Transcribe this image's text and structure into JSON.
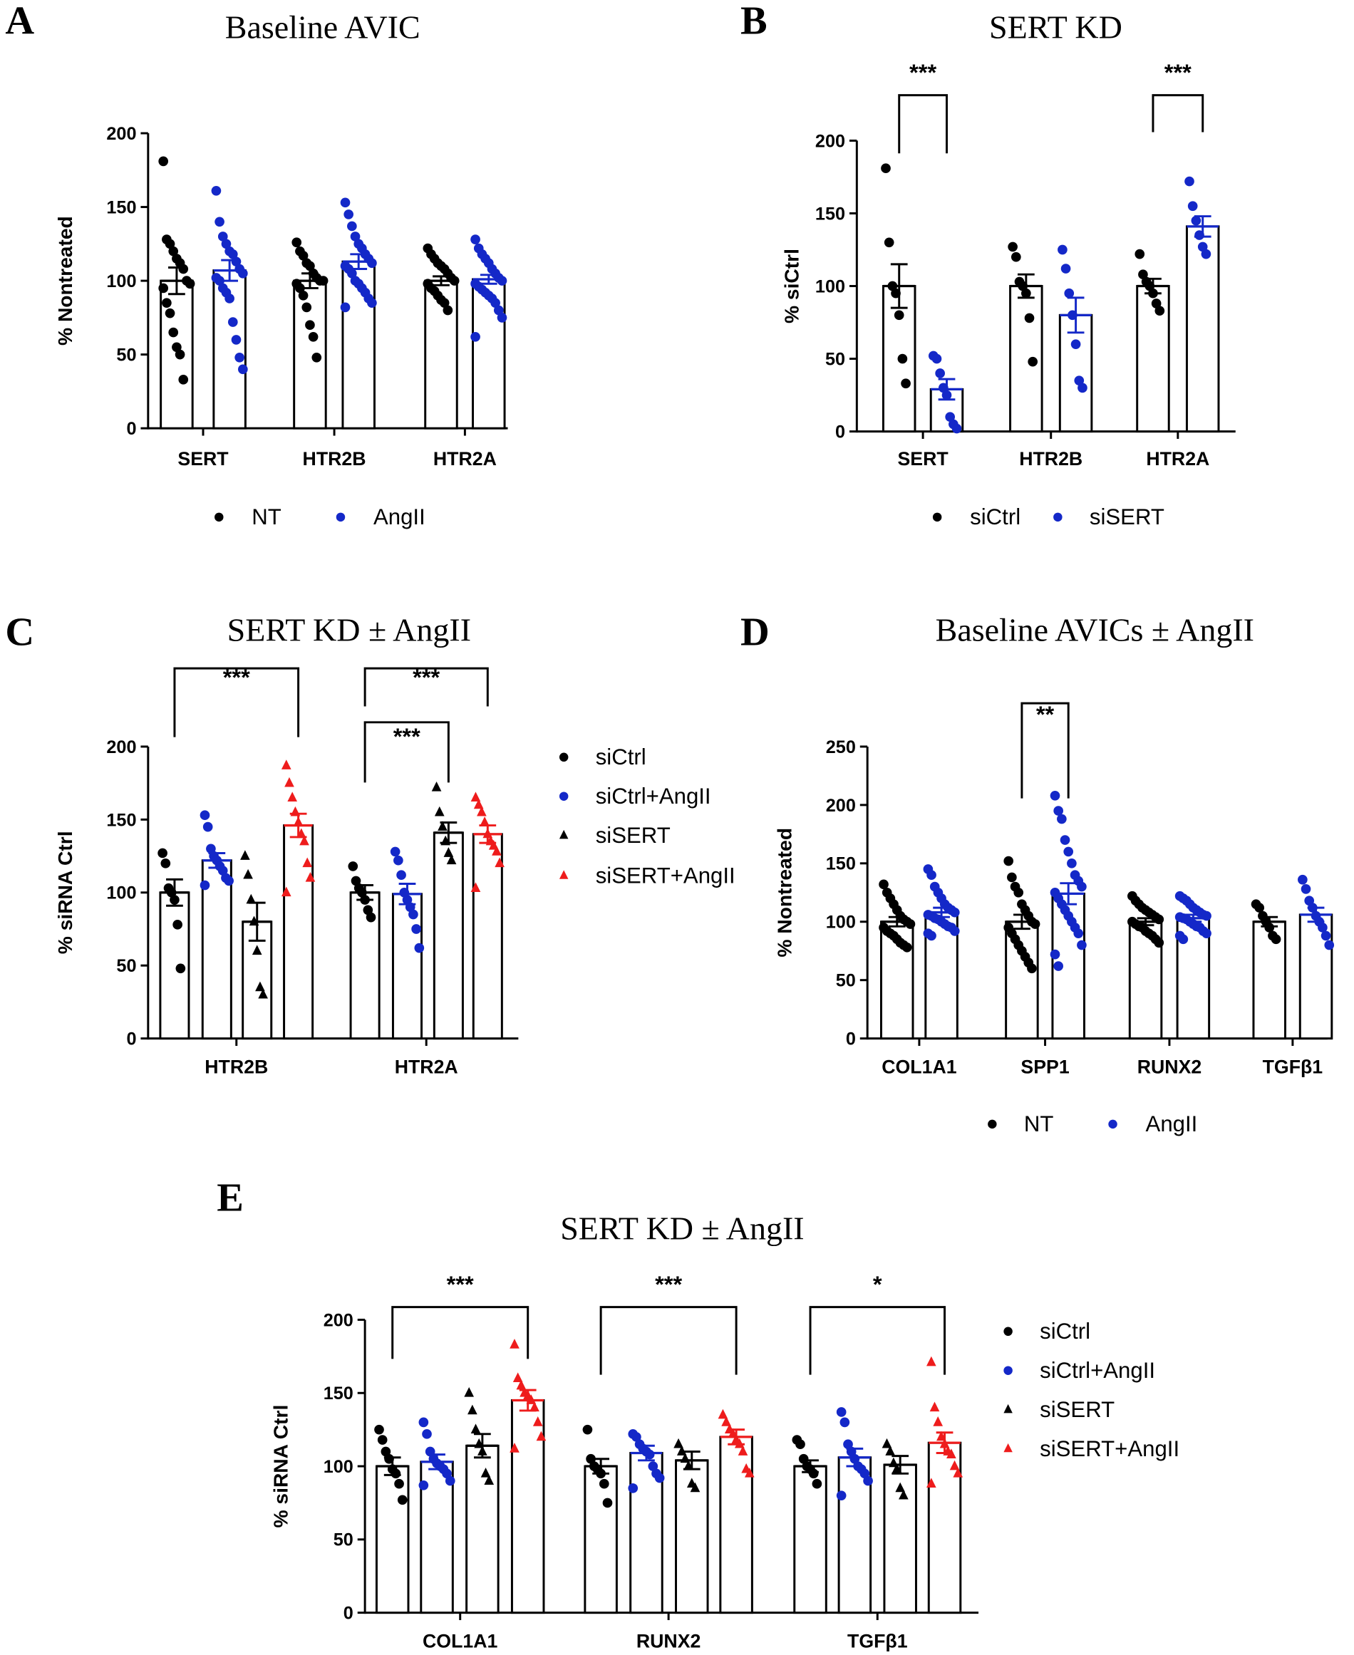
{
  "colors": {
    "black": "#000000",
    "blue": "#1428c8",
    "red": "#ee1c1c"
  },
  "chart_data": [
    {
      "id": "A",
      "letter": "A",
      "type": "bar",
      "title": "Baseline AVIC",
      "ylabel": "% Nontreated",
      "ylim": [
        0,
        200
      ],
      "yticks": [
        0,
        50,
        100,
        150,
        200
      ],
      "categories": [
        "SERT",
        "HTR2B",
        "HTR2A"
      ],
      "series": [
        {
          "name": "NT",
          "color": "black",
          "marker": "circle",
          "means": [
            100,
            100,
            100
          ],
          "sem": [
            9,
            5,
            3
          ],
          "points": [
            [
              181,
              128,
              125,
              120,
              115,
              112,
              108,
              100,
              98,
              95,
              85,
              78,
              65,
              55,
              50,
              33
            ],
            [
              126,
              120,
              117,
              112,
              110,
              105,
              102,
              100,
              100,
              98,
              95,
              90,
              82,
              70,
              62,
              48
            ],
            [
              122,
              118,
              115,
              112,
              110,
              108,
              105,
              102,
              100,
              98,
              95,
              93,
              90,
              87,
              85,
              80
            ]
          ]
        },
        {
          "name": "AngII",
          "color": "blue",
          "marker": "circle",
          "means": [
            107,
            113,
            101
          ],
          "sem": [
            7,
            5,
            3
          ],
          "points": [
            [
              161,
              140,
              130,
              125,
              120,
              118,
              113,
              108,
              105,
              102,
              100,
              95,
              92,
              88,
              72,
              60,
              48,
              40
            ],
            [
              153,
              145,
              137,
              130,
              125,
              122,
              118,
              115,
              112,
              110,
              108,
              105,
              100,
              98,
              95,
              92,
              88,
              85,
              82
            ],
            [
              128,
              122,
              118,
              115,
              112,
              108,
              105,
              102,
              100,
              98,
              96,
              94,
              92,
              90,
              88,
              85,
              80,
              75,
              62
            ]
          ]
        }
      ],
      "significance": []
    },
    {
      "id": "B",
      "letter": "B",
      "type": "bar",
      "title": "SERT KD",
      "ylabel": "% siCtrl",
      "ylim": [
        0,
        200
      ],
      "yticks": [
        0,
        50,
        100,
        150,
        200
      ],
      "categories": [
        "SERT",
        "HTR2B",
        "HTR2A"
      ],
      "series": [
        {
          "name": "siCtrl",
          "color": "black",
          "marker": "circle",
          "means": [
            100,
            100,
            100
          ],
          "sem": [
            15,
            8,
            5
          ],
          "points": [
            [
              181,
              130,
              100,
              95,
              80,
              50,
              33
            ],
            [
              127,
              120,
              103,
              100,
              95,
              78,
              48
            ],
            [
              122,
              108,
              103,
              100,
              95,
              88,
              83
            ]
          ]
        },
        {
          "name": "siSERT",
          "color": "blue",
          "marker": "circle",
          "means": [
            29,
            80,
            141
          ],
          "sem": [
            7,
            12,
            7
          ],
          "points": [
            [
              52,
              50,
              40,
              30,
              25,
              10,
              5,
              2
            ],
            [
              125,
              112,
              95,
              80,
              60,
              35,
              30
            ],
            [
              172,
              155,
              145,
              135,
              127,
              122
            ]
          ]
        }
      ],
      "significance": [
        {
          "category": 0,
          "from": 0,
          "to": 1,
          "label": "***"
        },
        {
          "category": 2,
          "from": 0,
          "to": 1,
          "label": "***"
        }
      ]
    },
    {
      "id": "C",
      "letter": "C",
      "type": "bar",
      "title": "SERT KD ± AngII",
      "ylabel": "% siRNA Ctrl",
      "ylim": [
        0,
        200
      ],
      "yticks": [
        0,
        50,
        100,
        150,
        200
      ],
      "categories": [
        "HTR2B",
        "HTR2A"
      ],
      "series": [
        {
          "name": "siCtrl",
          "color": "black",
          "marker": "circle",
          "means": [
            100,
            100
          ],
          "sem": [
            9,
            5
          ],
          "points": [
            [
              127,
              120,
              103,
              100,
              95,
              78,
              48
            ],
            [
              118,
              108,
              103,
              100,
              95,
              88,
              83
            ]
          ]
        },
        {
          "name": "siCtrl+AngII",
          "color": "blue",
          "marker": "circle",
          "means": [
            122,
            99
          ],
          "sem": [
            5,
            7
          ],
          "points": [
            [
              153,
              145,
              130,
              125,
              122,
              118,
              115,
              110,
              108,
              105
            ],
            [
              128,
              122,
              112,
              100,
              95,
              90,
              85,
              75,
              62
            ]
          ]
        },
        {
          "name": "siSERT",
          "color": "black",
          "marker": "triangle",
          "means": [
            80,
            141
          ],
          "sem": [
            13,
            7
          ],
          "points": [
            [
              125,
              112,
              95,
              80,
              60,
              35,
              30
            ],
            [
              172,
              155,
              145,
              135,
              127,
              122
            ]
          ]
        },
        {
          "name": "siSERT+AngII",
          "color": "red",
          "marker": "triangle",
          "means": [
            146,
            140
          ],
          "sem": [
            8,
            6
          ],
          "points": [
            [
              187,
              175,
              165,
              155,
              148,
              140,
              135,
              120,
              110,
              100
            ],
            [
              165,
              160,
              155,
              148,
              140,
              135,
              132,
              128,
              120,
              103
            ]
          ]
        }
      ],
      "significance": [
        {
          "category": 0,
          "from": 0,
          "to": 3,
          "label": "***"
        },
        {
          "category": 1,
          "from": 0,
          "to": 3,
          "label": "***"
        },
        {
          "category": 1,
          "from": 0,
          "to": 2,
          "label": "***"
        }
      ]
    },
    {
      "id": "D",
      "letter": "D",
      "type": "bar",
      "title": "Baseline AVICs ± AngII",
      "ylabel": "% Nontreated",
      "ylim": [
        0,
        250
      ],
      "yticks": [
        0,
        50,
        100,
        150,
        200,
        250
      ],
      "categories": [
        "COL1A1",
        "SPP1",
        "RUNX2",
        "TGFβ1"
      ],
      "series": [
        {
          "name": "NT",
          "color": "black",
          "marker": "circle",
          "means": [
            100,
            100,
            100,
            100
          ],
          "sem": [
            4,
            6,
            3,
            4
          ],
          "points": [
            [
              132,
              125,
              120,
              115,
              110,
              105,
              102,
              100,
              98,
              95,
              92,
              90,
              88,
              85,
              82,
              80,
              78
            ],
            [
              152,
              138,
              130,
              125,
              115,
              110,
              105,
              100,
              98,
              95,
              90,
              85,
              80,
              75,
              70,
              65,
              60
            ],
            [
              122,
              118,
              115,
              112,
              110,
              108,
              106,
              104,
              102,
              100,
              98,
              96,
              95,
              92,
              90,
              88,
              85,
              82
            ],
            [
              115,
              112,
              105,
              100,
              95,
              88,
              85
            ]
          ]
        },
        {
          "name": "AngII",
          "color": "blue",
          "marker": "circle",
          "means": [
            108,
            124,
            103,
            106
          ],
          "sem": [
            4,
            9,
            3,
            6
          ],
          "points": [
            [
              145,
              140,
              130,
              125,
              120,
              115,
              112,
              110,
              108,
              106,
              105,
              103,
              102,
              100,
              98,
              96,
              95,
              92,
              90,
              88
            ],
            [
              208,
              195,
              188,
              170,
              160,
              150,
              140,
              135,
              130,
              125,
              120,
              115,
              110,
              105,
              100,
              95,
              90,
              80,
              72,
              62
            ],
            [
              122,
              120,
              118,
              115,
              112,
              110,
              108,
              106,
              105,
              104,
              103,
              102,
              100,
              98,
              96,
              95,
              92,
              90,
              88,
              85
            ],
            [
              136,
              128,
              118,
              112,
              105,
              100,
              95,
              88,
              80
            ]
          ]
        }
      ],
      "significance": [
        {
          "category": 1,
          "from": 0,
          "to": 1,
          "label": "**"
        }
      ]
    },
    {
      "id": "E",
      "letter": "E",
      "type": "bar",
      "title": "SERT KD ± AngII",
      "ylabel": "% siRNA Ctrl",
      "ylim": [
        0,
        200
      ],
      "yticks": [
        0,
        50,
        100,
        150,
        200
      ],
      "categories": [
        "COL1A1",
        "RUNX2",
        "TGFβ1"
      ],
      "series": [
        {
          "name": "siCtrl",
          "color": "black",
          "marker": "circle",
          "means": [
            100,
            100,
            100
          ],
          "sem": [
            6,
            5,
            4
          ],
          "points": [
            [
              125,
              118,
              110,
              105,
              98,
              95,
              88,
              77
            ],
            [
              125,
              105,
              100,
              98,
              95,
              88,
              75
            ],
            [
              118,
              115,
              105,
              100,
              98,
              95,
              88
            ]
          ]
        },
        {
          "name": "siCtrl+AngII",
          "color": "blue",
          "marker": "circle",
          "means": [
            103,
            109,
            106
          ],
          "sem": [
            5,
            5,
            6
          ],
          "points": [
            [
              130,
              122,
              110,
              105,
              102,
              100,
              98,
              95,
              90,
              87
            ],
            [
              122,
              120,
              115,
              112,
              110,
              108,
              100,
              95,
              92,
              85
            ],
            [
              137,
              130,
              115,
              110,
              105,
              100,
              98,
              95,
              90,
              80
            ]
          ]
        },
        {
          "name": "siSERT",
          "color": "black",
          "marker": "triangle",
          "means": [
            114,
            104,
            101
          ],
          "sem": [
            8,
            6,
            6
          ],
          "points": [
            [
              150,
              138,
              125,
              115,
              110,
              95,
              90
            ],
            [
              115,
              110,
              105,
              100,
              88,
              85
            ],
            [
              115,
              110,
              102,
              98,
              85,
              80
            ]
          ]
        },
        {
          "name": "siSERT+AngII",
          "color": "red",
          "marker": "triangle",
          "means": [
            145,
            120,
            116
          ],
          "sem": [
            7,
            5,
            7
          ],
          "points": [
            [
              183,
              160,
              155,
              150,
              148,
              145,
              140,
              130,
              120,
              112
            ],
            [
              135,
              130,
              125,
              122,
              118,
              115,
              110,
              98,
              95
            ],
            [
              171,
              140,
              130,
              120,
              115,
              110,
              108,
              100,
              95,
              88
            ]
          ]
        }
      ],
      "significance": [
        {
          "category": 0,
          "from": 0,
          "to": 3,
          "label": "***"
        },
        {
          "category": 1,
          "from": 0,
          "to": 3,
          "label": "***"
        },
        {
          "category": 2,
          "from": 0,
          "to": 3,
          "label": "*"
        }
      ]
    }
  ]
}
